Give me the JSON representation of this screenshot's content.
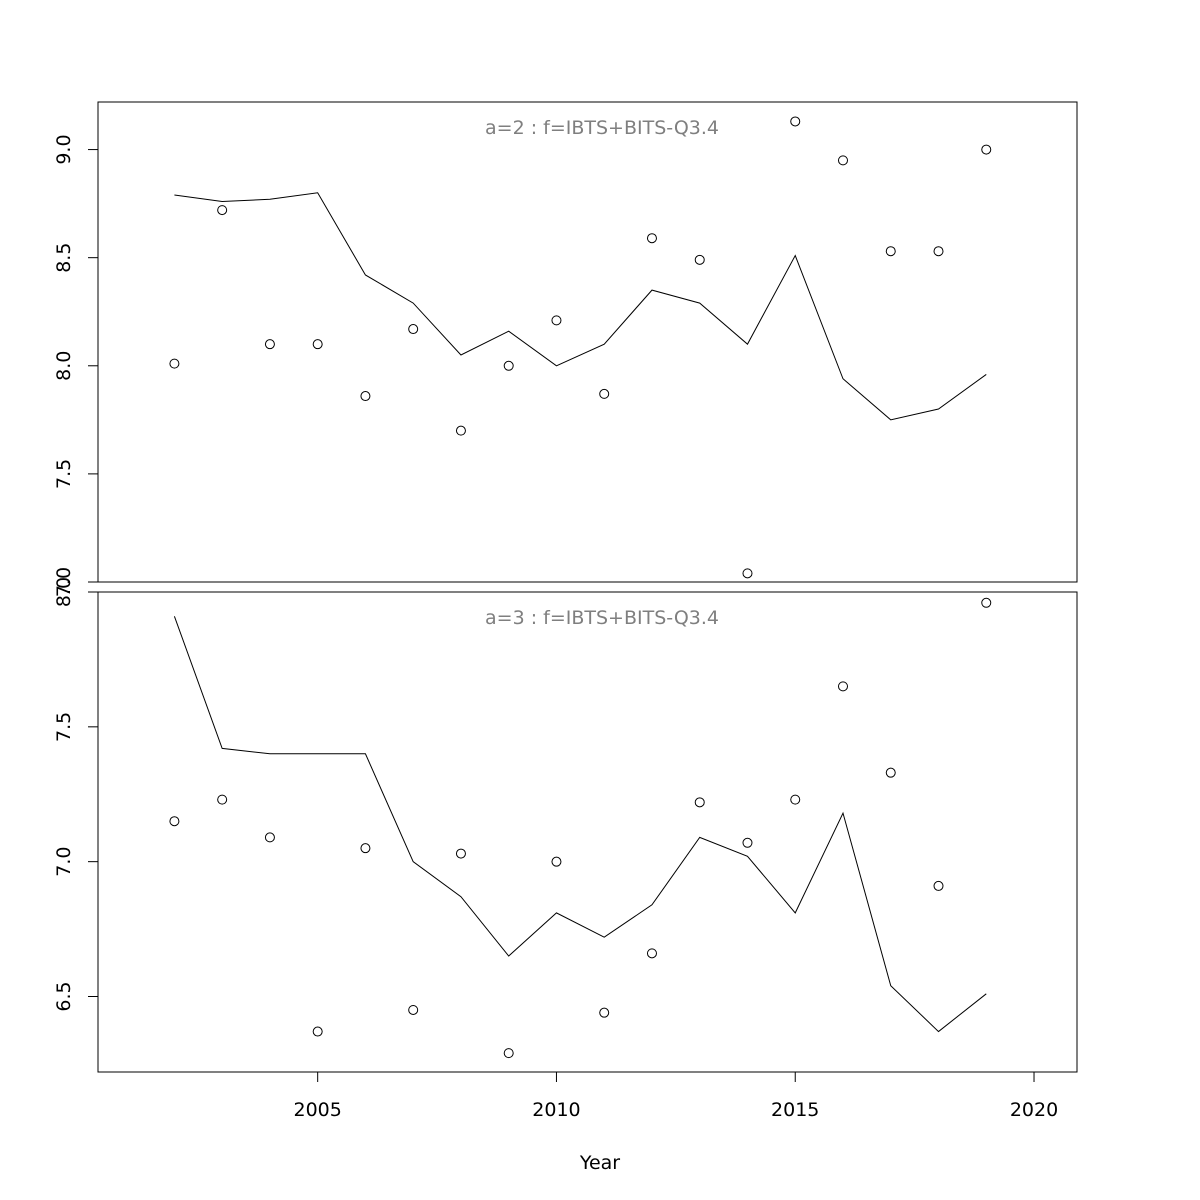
{
  "chart_data": [
    {
      "type": "line",
      "title": "a=2  :  f=IBTS+BITS-Q3.4",
      "xlabel": "Year",
      "ylabel": "",
      "xlim": [
        2000.4,
        2020.9
      ],
      "ylim": [
        7.0,
        9.22
      ],
      "yticks": [
        "7.0",
        "7.5",
        "8.0",
        "8.5",
        "9.0"
      ],
      "grid": false,
      "series": [
        {
          "style": "points",
          "x": [
            2002,
            2003,
            2004,
            2005,
            2006,
            2007,
            2008,
            2009,
            2010,
            2011,
            2012,
            2013,
            2014,
            2015,
            2016,
            2017,
            2018,
            2019
          ],
          "values": [
            8.01,
            8.72,
            8.1,
            8.1,
            7.86,
            8.17,
            7.7,
            8.0,
            8.21,
            7.87,
            8.59,
            8.49,
            7.04,
            9.13,
            8.95,
            8.53,
            8.53,
            9.0
          ]
        },
        {
          "style": "line",
          "x": [
            2002,
            2003,
            2004,
            2005,
            2006,
            2007,
            2008,
            2009,
            2010,
            2011,
            2012,
            2013,
            2014,
            2015,
            2016,
            2017,
            2018,
            2019
          ],
          "values": [
            8.79,
            8.76,
            8.77,
            8.8,
            8.42,
            8.29,
            8.05,
            8.16,
            8.0,
            8.1,
            8.35,
            8.29,
            8.1,
            8.51,
            7.94,
            7.75,
            7.8,
            7.96
          ]
        }
      ]
    },
    {
      "type": "line",
      "title": "a=3  :  f=IBTS+BITS-Q3.4",
      "xlabel": "Year",
      "ylabel": "",
      "xlim": [
        2000.4,
        2020.9
      ],
      "ylim": [
        6.22,
        8.0
      ],
      "yticks": [
        "6.5",
        "7.0",
        "7.5",
        "8.0"
      ],
      "xticks": [
        "2005",
        "2010",
        "2015",
        "2020"
      ],
      "grid": false,
      "series": [
        {
          "style": "points",
          "x": [
            2002,
            2003,
            2004,
            2005,
            2006,
            2007,
            2008,
            2009,
            2010,
            2011,
            2012,
            2013,
            2014,
            2015,
            2016,
            2017,
            2018,
            2019
          ],
          "values": [
            7.15,
            7.23,
            7.09,
            6.37,
            7.05,
            6.45,
            7.03,
            6.29,
            7.0,
            6.44,
            6.66,
            7.22,
            7.07,
            7.23,
            7.65,
            7.33,
            6.91,
            7.96
          ]
        },
        {
          "style": "line",
          "x": [
            2002,
            2003,
            2004,
            2005,
            2006,
            2007,
            2008,
            2009,
            2010,
            2011,
            2012,
            2013,
            2014,
            2015,
            2016,
            2017,
            2018,
            2019
          ],
          "values": [
            7.91,
            7.42,
            7.4,
            7.4,
            7.4,
            7.0,
            6.87,
            6.65,
            6.81,
            6.72,
            6.84,
            7.09,
            7.02,
            6.81,
            7.18,
            6.54,
            6.37,
            6.51
          ]
        }
      ]
    }
  ]
}
